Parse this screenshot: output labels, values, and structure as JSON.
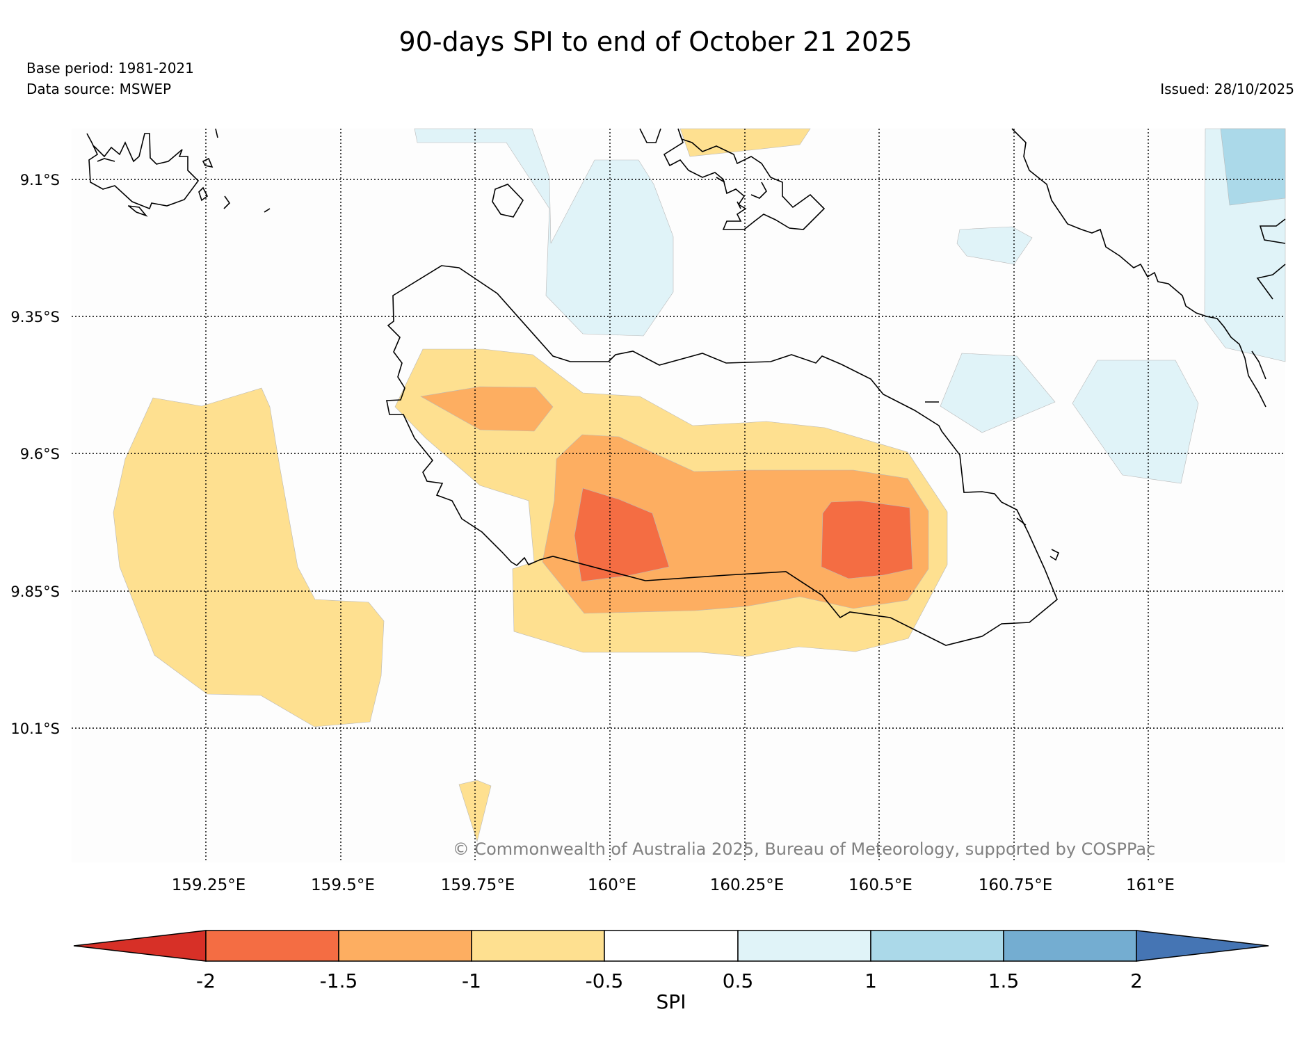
{
  "title": "90-days SPI to end of October 21 2025",
  "base_period": "Base period: 1981-2021",
  "data_source": "Data source: MSWEP",
  "issued": "Issued: 28/10/2025",
  "copyright": "© Commonwealth of Australia 2025, Bureau of Meteorology, supported by COSPPac",
  "map": {
    "lat_labels": [
      "9.1°S",
      "9.35°S",
      "9.6°S",
      "9.85°S",
      "10.1°S"
    ],
    "lon_labels": [
      "159.25°E",
      "159.5°E",
      "159.75°E",
      "160°E",
      "160.25°E",
      "160.5°E",
      "160.75°E",
      "161°E"
    ]
  },
  "colorbar": {
    "label": "SPI",
    "ticks": [
      "-2",
      "-1.5",
      "-1",
      "-0.5",
      "0.5",
      "1",
      "1.5",
      "2"
    ],
    "colors": {
      "below_-2": "#d73027",
      "-2_-1.5": "#f46d43",
      "-1.5_-1": "#fdae61",
      "-1_-0.5": "#fee090",
      "-0.5_0.5": "#ffffff",
      "0.5_1": "#e0f3f8",
      "1_1.5": "#abd9e9",
      "1.5_2": "#74add1",
      "above_2": "#4575b4"
    }
  }
}
